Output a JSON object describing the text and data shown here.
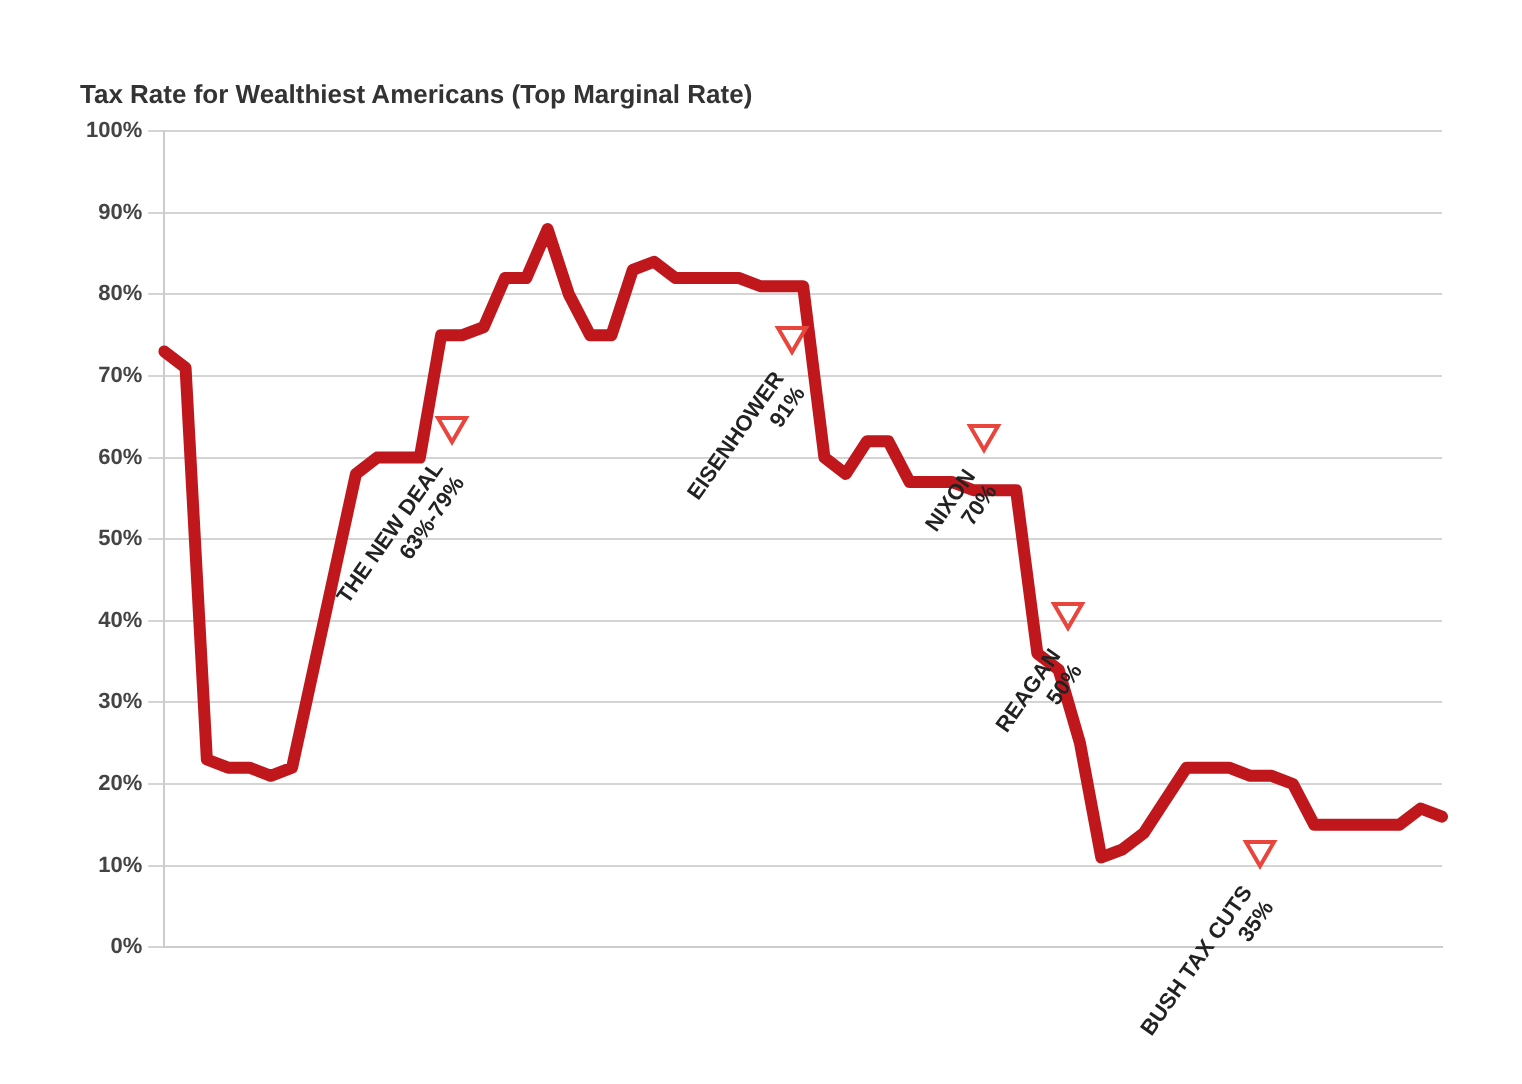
{
  "chart_data": {
    "type": "line",
    "title": "Tax Rate for Wealthiest Americans (Top Marginal Rate)",
    "categories": [
      null,
      null,
      null,
      null,
      null,
      null,
      null,
      null,
      null,
      null,
      null,
      null,
      null,
      null,
      null,
      null,
      null,
      null,
      null,
      null,
      null,
      null,
      null,
      null,
      null,
      null,
      null,
      null,
      null,
      null,
      null,
      null,
      null,
      null,
      null,
      null,
      null,
      null,
      null,
      null,
      null,
      null,
      null,
      null,
      null,
      null,
      null,
      null,
      null,
      null,
      null,
      null,
      null,
      null,
      null,
      null,
      null,
      null,
      null,
      null,
      null
    ],
    "series": [
      {
        "color": "#c0171d",
        "values": [
          73,
          71,
          23,
          22,
          22,
          21,
          22,
          34,
          46,
          58,
          60,
          60,
          60,
          75,
          75,
          76,
          82,
          82,
          88,
          80,
          75,
          75,
          83,
          84,
          82,
          82,
          82,
          82,
          81,
          81,
          81,
          60,
          58,
          62,
          62,
          57,
          57,
          57,
          56,
          56,
          56,
          36,
          34,
          25,
          11,
          12,
          14,
          18,
          22,
          22,
          22,
          21,
          21,
          20,
          15,
          15,
          15,
          15,
          15,
          17,
          16
        ]
      }
    ],
    "ylim": [
      0,
      100
    ],
    "yticks": [
      {
        "value": 0,
        "label": "0%"
      },
      {
        "value": 10,
        "label": "10%"
      },
      {
        "value": 20,
        "label": "20%"
      },
      {
        "value": 30,
        "label": "30%"
      },
      {
        "value": 40,
        "label": "40%"
      },
      {
        "value": 50,
        "label": "50%"
      },
      {
        "value": 60,
        "label": "60%"
      },
      {
        "value": 70,
        "label": "70%"
      },
      {
        "value": 80,
        "label": "80%"
      },
      {
        "value": 90,
        "label": "90%"
      },
      {
        "value": 100,
        "label": "100%"
      }
    ],
    "grid": "y",
    "legend": false,
    "marker": "none",
    "line_style": "solid",
    "annotations": [
      "THE NEW DEAL\n63%-79%",
      "EISENHOWER\n91%",
      "NIXON\n70%",
      "REAGAN\n50%",
      "BUSH TAX CUTS\n35%"
    ]
  }
}
